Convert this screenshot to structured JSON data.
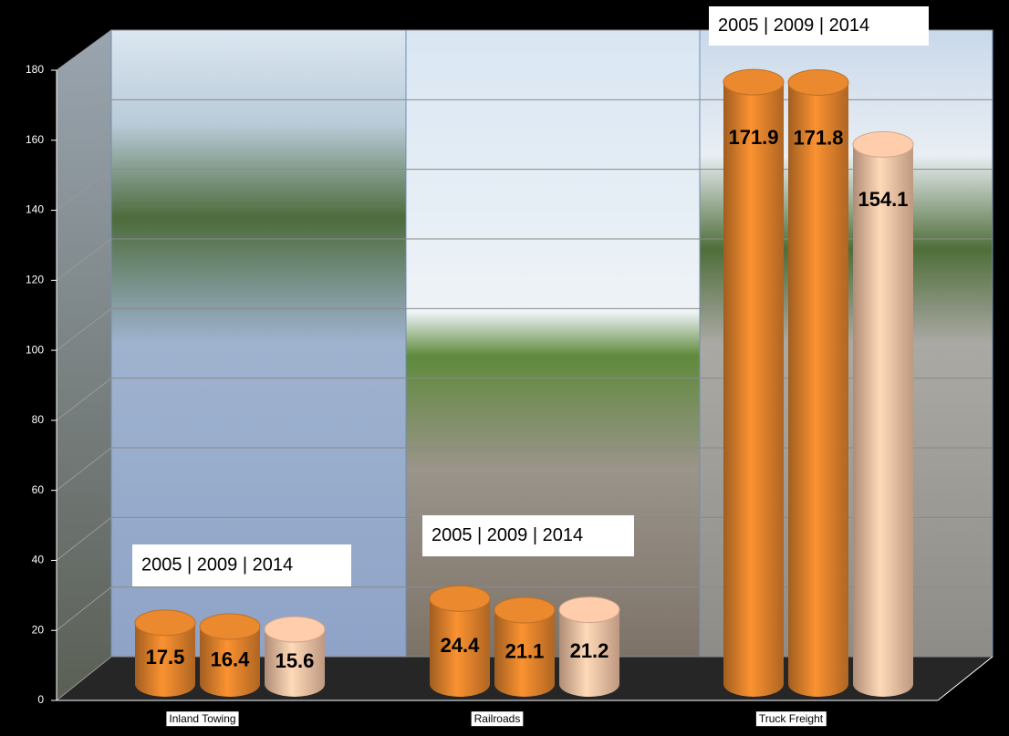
{
  "chart_data": {
    "type": "cylinder_bar",
    "categories": [
      "Inland Towing",
      "Railroads",
      "Truck Freight"
    ],
    "series": [
      {
        "color": "#e0822c",
        "values": [
          17.5,
          24.4,
          171.9
        ]
      },
      {
        "color": "#e0822c",
        "values": [
          16.4,
          21.1,
          171.8
        ]
      },
      {
        "color": "#f3c3a4",
        "values": [
          15.6,
          21.2,
          154.1
        ]
      }
    ],
    "annotations": [
      "2005 | 2009 | 2014",
      "2005 | 2009 | 2014",
      "2005 | 2009 | 2014"
    ],
    "ylim": [
      0,
      180
    ],
    "yticks": [
      0,
      20,
      40,
      60,
      80,
      100,
      120,
      140,
      160,
      180
    ],
    "grid": true
  }
}
